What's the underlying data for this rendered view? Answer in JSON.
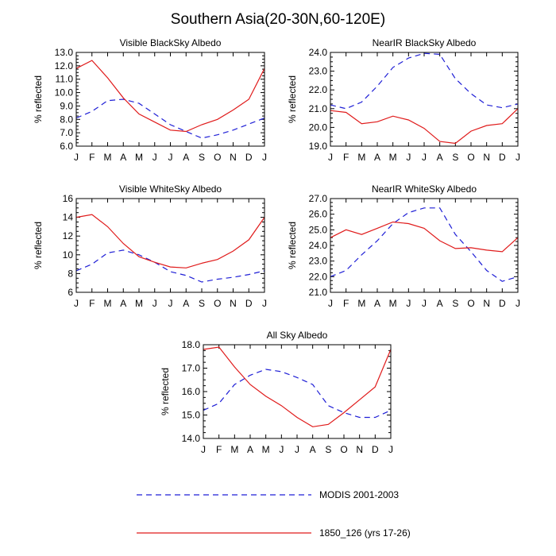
{
  "title": "Southern Asia(20-30N,60-120E)",
  "legend": {
    "position": "bottom-center",
    "entries": [
      {
        "name": "MODIS 2001-2003",
        "color": "#1f1fd6",
        "style": "dashed"
      },
      {
        "name": "1850_126 (yrs 17-26)",
        "color": "#e01b1b",
        "style": "solid"
      }
    ]
  },
  "chart_data": [
    {
      "type": "line",
      "title": "Visible BlackSky Albedo",
      "xlabel": "",
      "ylabel": "% reflected",
      "categories": [
        "J",
        "F",
        "M",
        "A",
        "M",
        "J",
        "J",
        "A",
        "S",
        "O",
        "N",
        "D",
        "J"
      ],
      "ylim": [
        6.0,
        13.0
      ],
      "yticks": [
        "6.0",
        "7.0",
        "8.0",
        "9.0",
        "10.0",
        "11.0",
        "12.0",
        "13.0"
      ],
      "grid": false,
      "series": [
        {
          "name": "MODIS 2001-2003",
          "values": [
            8.1,
            8.6,
            9.4,
            9.5,
            9.2,
            8.4,
            7.6,
            7.1,
            6.6,
            6.85,
            7.2,
            7.65,
            8.1
          ]
        },
        {
          "name": "1850_126 (yrs 17-26)",
          "values": [
            11.8,
            12.4,
            11.1,
            9.6,
            8.4,
            7.8,
            7.2,
            7.1,
            7.6,
            8.0,
            8.7,
            9.5,
            11.8
          ]
        }
      ]
    },
    {
      "type": "line",
      "title": "NearIR BlackSky Albedo",
      "xlabel": "",
      "ylabel": "% reflected",
      "categories": [
        "J",
        "F",
        "M",
        "A",
        "M",
        "J",
        "J",
        "A",
        "S",
        "O",
        "N",
        "D",
        "J"
      ],
      "ylim": [
        19.0,
        24.0
      ],
      "yticks": [
        "19.0",
        "20.0",
        "21.0",
        "22.0",
        "23.0",
        "24.0"
      ],
      "grid": false,
      "series": [
        {
          "name": "MODIS 2001-2003",
          "values": [
            21.2,
            21.0,
            21.35,
            22.2,
            23.2,
            23.7,
            23.95,
            23.9,
            22.6,
            21.8,
            21.2,
            21.05,
            21.25
          ]
        },
        {
          "name": "1850_126 (yrs 17-26)",
          "values": [
            20.9,
            20.8,
            20.2,
            20.3,
            20.6,
            20.4,
            19.95,
            19.25,
            19.15,
            19.8,
            20.1,
            20.2,
            21.0
          ]
        }
      ]
    },
    {
      "type": "line",
      "title": "Visible WhiteSky Albedo",
      "xlabel": "",
      "ylabel": "% reflected",
      "categories": [
        "J",
        "F",
        "M",
        "A",
        "M",
        "J",
        "J",
        "A",
        "S",
        "O",
        "N",
        "D",
        "J"
      ],
      "ylim": [
        6,
        16
      ],
      "yticks": [
        "6",
        "8",
        "10",
        "12",
        "14",
        "16"
      ],
      "grid": false,
      "series": [
        {
          "name": "MODIS 2001-2003",
          "values": [
            8.3,
            9.0,
            10.2,
            10.5,
            10.0,
            9.2,
            8.2,
            7.8,
            7.1,
            7.4,
            7.6,
            7.9,
            8.3
          ]
        },
        {
          "name": "1850_126 (yrs 17-26)",
          "values": [
            14.0,
            14.3,
            13.0,
            11.2,
            9.8,
            9.2,
            8.7,
            8.6,
            9.1,
            9.5,
            10.4,
            11.6,
            14.0
          ]
        }
      ]
    },
    {
      "type": "line",
      "title": "NearIR WhiteSky Albedo",
      "xlabel": "",
      "ylabel": "% reflected",
      "categories": [
        "J",
        "F",
        "M",
        "A",
        "M",
        "J",
        "J",
        "A",
        "S",
        "O",
        "N",
        "D",
        "J"
      ],
      "ylim": [
        21.0,
        27.0
      ],
      "yticks": [
        "21.0",
        "22.0",
        "23.0",
        "24.0",
        "25.0",
        "26.0",
        "27.0"
      ],
      "grid": false,
      "series": [
        {
          "name": "MODIS 2001-2003",
          "values": [
            22.0,
            22.4,
            23.4,
            24.3,
            25.4,
            26.1,
            26.4,
            26.4,
            24.7,
            23.6,
            22.4,
            21.7,
            22.0
          ]
        },
        {
          "name": "1850_126 (yrs 17-26)",
          "values": [
            24.5,
            25.0,
            24.7,
            25.1,
            25.5,
            25.4,
            25.1,
            24.3,
            23.8,
            23.85,
            23.7,
            23.6,
            24.5
          ]
        }
      ]
    },
    {
      "type": "line",
      "title": "All Sky Albedo",
      "xlabel": "",
      "ylabel": "% reflected",
      "categories": [
        "J",
        "F",
        "M",
        "A",
        "M",
        "J",
        "J",
        "A",
        "S",
        "O",
        "N",
        "D",
        "J"
      ],
      "ylim": [
        14.0,
        18.0
      ],
      "yticks": [
        "14.0",
        "15.0",
        "16.0",
        "17.0",
        "18.0"
      ],
      "grid": false,
      "series": [
        {
          "name": "MODIS 2001-2003",
          "values": [
            15.2,
            15.5,
            16.3,
            16.7,
            16.95,
            16.85,
            16.6,
            16.3,
            15.4,
            15.1,
            14.9,
            14.9,
            15.2
          ]
        },
        {
          "name": "1850_126 (yrs 17-26)",
          "values": [
            17.8,
            17.9,
            17.05,
            16.3,
            15.8,
            15.4,
            14.9,
            14.5,
            14.6,
            15.1,
            15.65,
            16.2,
            17.8
          ]
        }
      ]
    }
  ]
}
